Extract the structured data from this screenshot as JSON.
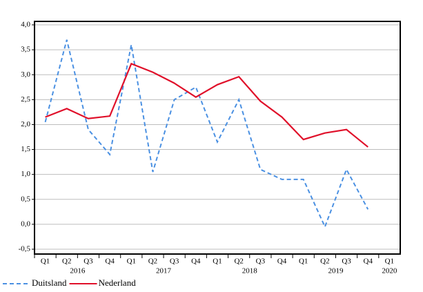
{
  "chart_data": {
    "type": "line",
    "categories": [
      "Q1",
      "Q2",
      "Q3",
      "Q4",
      "Q1",
      "Q2",
      "Q3",
      "Q4",
      "Q1",
      "Q2",
      "Q3",
      "Q4",
      "Q1",
      "Q2",
      "Q3",
      "Q4",
      "Q1"
    ],
    "years": [
      "2016",
      "2016",
      "2016",
      "2016",
      "2017",
      "2017",
      "2017",
      "2017",
      "2018",
      "2018",
      "2018",
      "2018",
      "2019",
      "2019",
      "2019",
      "2019",
      "2020"
    ],
    "series": [
      {
        "name": "Duitsland",
        "color": "#4a90e2",
        "dashed": true,
        "values": [
          2.05,
          3.7,
          1.9,
          1.4,
          3.6,
          1.05,
          2.5,
          2.75,
          1.65,
          2.5,
          1.1,
          0.9,
          0.9,
          -0.05,
          1.1,
          0.3,
          null
        ]
      },
      {
        "name": "Nederland",
        "color": "#e0102a",
        "dashed": false,
        "values": [
          2.15,
          2.32,
          2.12,
          2.17,
          3.22,
          3.05,
          2.83,
          2.55,
          2.8,
          2.96,
          2.47,
          2.15,
          1.7,
          1.83,
          1.9,
          1.55,
          null
        ]
      }
    ],
    "ylim": [
      -0.5,
      4.0
    ],
    "yticks": [
      {
        "value": -0.5,
        "label": "-0,5"
      },
      {
        "value": 0,
        "label": "0,0"
      },
      {
        "value": 0.5,
        "label": "0,5"
      },
      {
        "value": 1,
        "label": "1,0"
      },
      {
        "value": 1.5,
        "label": "1,5"
      },
      {
        "value": 2,
        "label": "2,0"
      },
      {
        "value": 2.5,
        "label": "2,5"
      },
      {
        "value": 3,
        "label": "3,0"
      },
      {
        "value": 3.5,
        "label": "3,5"
      },
      {
        "value": 4,
        "label": "4,0"
      }
    ],
    "grid": true,
    "legend": "bottom-left"
  }
}
